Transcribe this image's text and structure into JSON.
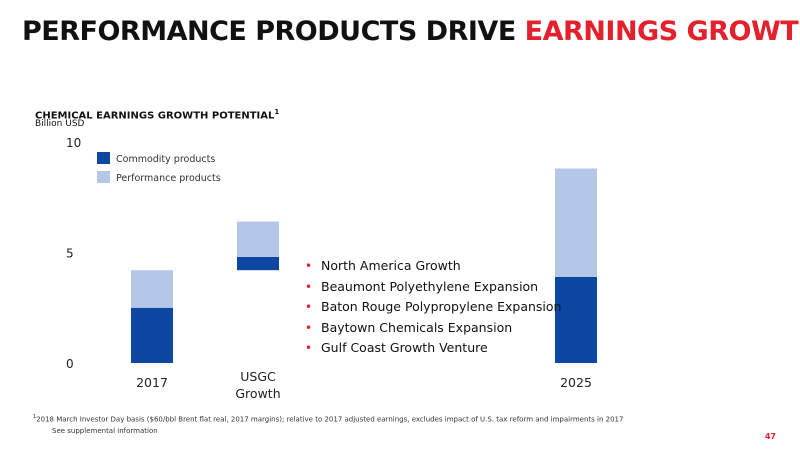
{
  "slide": {
    "title_main": "PERFORMANCE PRODUCTS DRIVE",
    "title_accent": "EARNINGS GROWTH",
    "page_number": "47",
    "colors": {
      "accent": "#e4202c"
    }
  },
  "chart_data": {
    "type": "bar",
    "stacked": true,
    "title": "CHEMICAL EARNINGS GROWTH POTENTIAL",
    "title_footnote_mark": "1",
    "ylabel": "Billion USD",
    "ylim": [
      0,
      10
    ],
    "yticks": [
      "0",
      "5",
      "10"
    ],
    "categories": [
      "2017",
      "USGC Growth",
      "2025"
    ],
    "bar_type": [
      "stack",
      "waterfall",
      "stack"
    ],
    "series": [
      {
        "name": "Commodity products",
        "color": "#0e47a1",
        "values": [
          2.5,
          0.6,
          3.9
        ]
      },
      {
        "name": "Performance products",
        "color": "#b4c7e7",
        "values": [
          1.7,
          1.6,
          4.9
        ]
      }
    ],
    "legend_position": "top-left",
    "grid": false
  },
  "bullets": [
    "North America Growth",
    "Beaumont Polyethylene Expansion",
    "Baton Rouge Polypropylene Expansion",
    "Baytown Chemicals Expansion",
    "Gulf Coast Growth Venture"
  ],
  "footnotes": {
    "mark": "1",
    "line1": "2018 March Investor Day basis ($60/bbl Brent flat real, 2017 margins); relative to 2017 adjusted earnings, excludes impact of U.S. tax reform and impairments in 2017",
    "line2": "See supplemental information"
  }
}
